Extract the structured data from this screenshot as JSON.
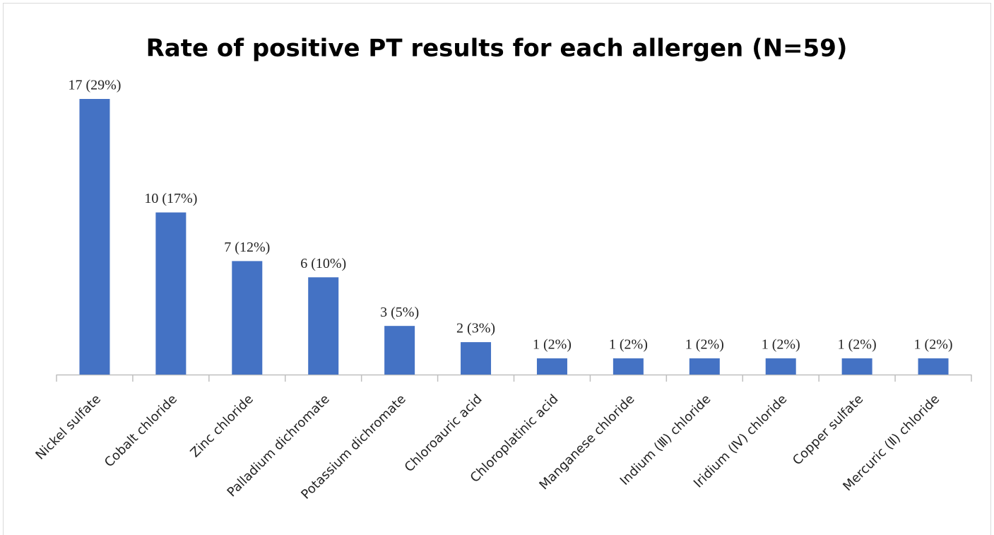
{
  "chart_data": {
    "type": "bar",
    "title": "Rate of positive PT results for each allergen (N=59)",
    "categories": [
      "Nickel sulfate",
      "Cobalt chloride",
      "Zinc chloride",
      "Palladium dichromate",
      "Potassium dichromate",
      "Chloroauric acid",
      "Chloroplatinic acid",
      "Manganese chloride",
      "Indium (Ⅲ) chloride",
      "Iridium (Ⅳ) chloride",
      "Copper sulfate",
      "Mercuric (Ⅱ) chloride"
    ],
    "values": [
      17,
      10,
      7,
      6,
      3,
      2,
      1,
      1,
      1,
      1,
      1,
      1
    ],
    "value_labels": [
      "17 (29%)",
      "10 (17%)",
      "7 (12%)",
      "6 (10%)",
      "3 (5%)",
      "2 (3%)",
      "1 (2%)",
      "1 (2%)",
      "1 (2%)",
      "1 (2%)",
      "1 (2%)",
      "1 (2%)"
    ],
    "color": "#4472c4"
  }
}
